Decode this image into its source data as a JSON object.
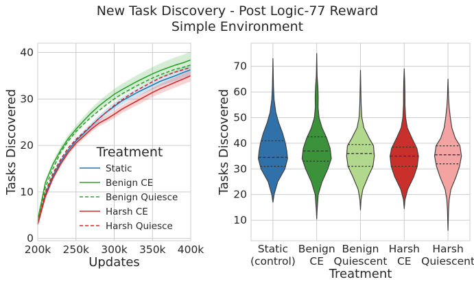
{
  "figure": {
    "title_line1": "New Task Discovery - Post Logic-77 Reward",
    "title_line2": "Simple Environment"
  },
  "chart_data": [
    {
      "type": "line",
      "xlabel": "Updates",
      "ylabel": "Tasks Discovered",
      "xlim": [
        200000,
        400000
      ],
      "ylim": [
        -0.5,
        42
      ],
      "xticks": [
        200000,
        250000,
        300000,
        350000,
        400000
      ],
      "xtick_labels": [
        "200k",
        "250k",
        "300k",
        "350k",
        "400k"
      ],
      "yticks": [
        0,
        10,
        20,
        30,
        40
      ],
      "ytick_labels": [
        "0",
        "10",
        "20",
        "30",
        "40"
      ],
      "grid": true,
      "legend": {
        "title": "Treatment",
        "placement": "lower-right"
      },
      "x": [
        200000,
        210000,
        220000,
        230000,
        240000,
        250000,
        260000,
        270000,
        280000,
        290000,
        300000,
        310000,
        320000,
        330000,
        340000,
        350000,
        360000,
        370000,
        380000,
        390000,
        400000
      ],
      "series": [
        {
          "name": "Static",
          "color": "#1f77b4",
          "dash": "solid",
          "values": [
            3,
            9.5,
            13.5,
            16.5,
            19,
            21,
            22.6,
            24.2,
            25.8,
            27.2,
            28.4,
            29.6,
            30.5,
            31.4,
            32.2,
            33,
            33.8,
            34.4,
            35,
            35.7,
            36.3
          ],
          "band": 1.2,
          "fill": "#1f77b4"
        },
        {
          "name": "Benign CE",
          "color": "#2ca02c",
          "dash": "solid",
          "values": [
            4,
            12,
            16,
            19,
            21.5,
            23.5,
            25.3,
            27,
            28.5,
            29.8,
            31,
            32,
            32.9,
            33.8,
            34.6,
            35.4,
            36.1,
            36.7,
            37.3,
            37.8,
            38.4
          ],
          "band": 1.8,
          "fill": "#2ca02c"
        },
        {
          "name": "Benign Quiesce",
          "color": "#2ca02c",
          "dash": "dashed",
          "values": [
            3.5,
            11,
            15,
            18.5,
            21,
            23,
            24.6,
            26.1,
            27.5,
            28.8,
            30,
            31.1,
            32,
            32.9,
            33.7,
            34.5,
            35.2,
            35.8,
            36.4,
            36.8,
            37.3
          ],
          "band": 0,
          "fill": ""
        },
        {
          "name": "Harsh CE",
          "color": "#d62728",
          "dash": "solid",
          "values": [
            3,
            9,
            13,
            16,
            18.5,
            20.5,
            22,
            23.5,
            24.8,
            25.7,
            26.7,
            27.8,
            28.7,
            29.6,
            30.5,
            31.4,
            32.2,
            32.9,
            33.6,
            34.3,
            35
          ],
          "band": 1.2,
          "fill": "#d62728"
        },
        {
          "name": "Harsh Quiesce",
          "color": "#d62728",
          "dash": "dashed",
          "values": [
            3.2,
            10,
            14,
            17,
            19.5,
            21.3,
            22.8,
            24.3,
            25.8,
            27.2,
            28.6,
            29.8,
            30.9,
            31.9,
            32.8,
            33.7,
            34.5,
            35.2,
            35.8,
            36.3,
            36.8
          ],
          "band": 0,
          "fill": ""
        }
      ]
    },
    {
      "type": "violin",
      "xlabel": "Treatment",
      "ylabel": "Tasks Discovered",
      "ylim": [
        2,
        79
      ],
      "yticks": [
        10,
        20,
        30,
        40,
        50,
        60,
        70
      ],
      "ytick_labels": [
        "10",
        "20",
        "30",
        "40",
        "50",
        "60",
        "70"
      ],
      "grid": true,
      "categories": [
        {
          "line1": "Static",
          "line2": "(control)",
          "color": "#2f71a8",
          "q1": 31,
          "median": 34.5,
          "q3": 41,
          "profile": [
            [
              17,
              0
            ],
            [
              20,
              0.06
            ],
            [
              25,
              0.25
            ],
            [
              30,
              0.62
            ],
            [
              34,
              0.76
            ],
            [
              37,
              0.72
            ],
            [
              40,
              0.65
            ],
            [
              44,
              0.5
            ],
            [
              48,
              0.3
            ],
            [
              52,
              0.15
            ],
            [
              57,
              0.06
            ],
            [
              62,
              0.03
            ],
            [
              67,
              0.015
            ],
            [
              73,
              0
            ]
          ]
        },
        {
          "line1": "Benign",
          "line2": "CE",
          "color": "#3b923b",
          "q1": 33,
          "median": 37,
          "q3": 42.5,
          "profile": [
            [
              10.5,
              0
            ],
            [
              14,
              0.02
            ],
            [
              20,
              0.08
            ],
            [
              25,
              0.28
            ],
            [
              30,
              0.58
            ],
            [
              34,
              0.76
            ],
            [
              38,
              0.7
            ],
            [
              42,
              0.52
            ],
            [
              46,
              0.28
            ],
            [
              50,
              0.12
            ],
            [
              54,
              0.07
            ],
            [
              58,
              0.08
            ],
            [
              62,
              0.06
            ],
            [
              66,
              0.02
            ],
            [
              75,
              0
            ]
          ]
        },
        {
          "line1": "Benign",
          "line2": "Quiescent",
          "color": "#b2d88e",
          "q1": 31,
          "median": 36,
          "q3": 39.5,
          "profile": [
            [
              14,
              0
            ],
            [
              18,
              0.03
            ],
            [
              22,
              0.12
            ],
            [
              27,
              0.4
            ],
            [
              31,
              0.65
            ],
            [
              35,
              0.72
            ],
            [
              39,
              0.68
            ],
            [
              42,
              0.45
            ],
            [
              46,
              0.18
            ],
            [
              50,
              0.07
            ],
            [
              55,
              0.035
            ],
            [
              60,
              0.02
            ],
            [
              68.5,
              0
            ]
          ]
        },
        {
          "line1": "Harsh",
          "line2": "CE",
          "color": "#c9302c",
          "q1": 31,
          "median": 35,
          "q3": 38.5,
          "profile": [
            [
              14.5,
              0
            ],
            [
              18,
              0.04
            ],
            [
              22,
              0.18
            ],
            [
              27,
              0.5
            ],
            [
              31,
              0.68
            ],
            [
              35,
              0.74
            ],
            [
              38,
              0.66
            ],
            [
              42,
              0.4
            ],
            [
              46,
              0.16
            ],
            [
              50,
              0.07
            ],
            [
              55,
              0.04
            ],
            [
              60,
              0.035
            ],
            [
              64,
              0.025
            ],
            [
              69,
              0
            ]
          ]
        },
        {
          "line1": "Harsh",
          "line2": "Quiescent",
          "color": "#f2a3a2",
          "q1": 32,
          "median": 35.5,
          "q3": 39,
          "profile": [
            [
              6,
              0
            ],
            [
              10,
              0.015
            ],
            [
              14,
              0.03
            ],
            [
              18,
              0.06
            ],
            [
              22,
              0.15
            ],
            [
              27,
              0.42
            ],
            [
              31,
              0.6
            ],
            [
              35,
              0.7
            ],
            [
              39,
              0.62
            ],
            [
              42,
              0.38
            ],
            [
              46,
              0.2
            ],
            [
              50,
              0.12
            ],
            [
              54,
              0.06
            ],
            [
              58,
              0.03
            ],
            [
              65,
              0
            ]
          ]
        }
      ]
    }
  ]
}
